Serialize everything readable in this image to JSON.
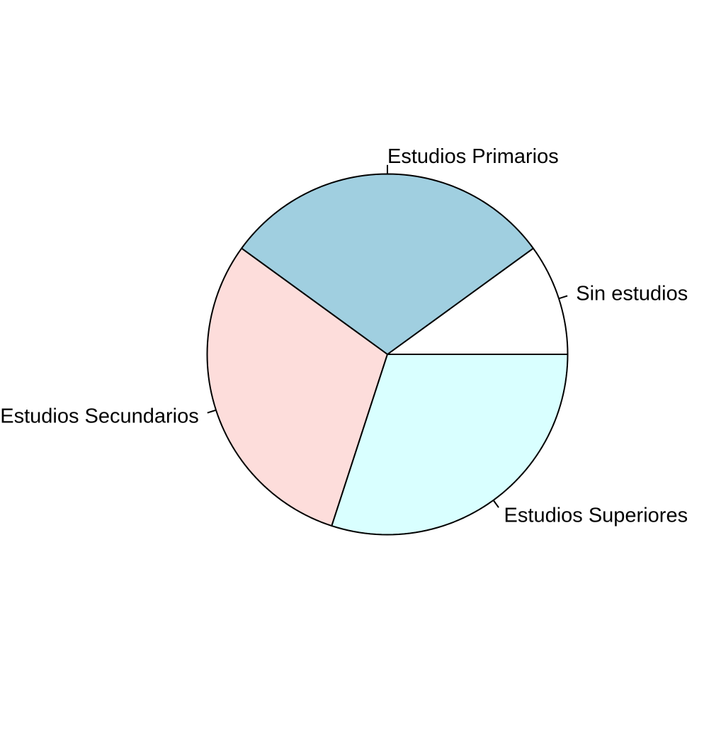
{
  "chart_data": {
    "type": "pie",
    "title": "",
    "direction": "counterclockwise",
    "start_angle_deg": 0,
    "slices": [
      {
        "label": "Sin estudios",
        "value": 10,
        "color": "#FFFFFF"
      },
      {
        "label": "Estudios Primarios",
        "value": 30,
        "color": "#A0CFE0"
      },
      {
        "label": "Estudios Secundarios",
        "value": 30,
        "color": "#FDDDDB"
      },
      {
        "label": "Estudios Superiores",
        "value": 30,
        "color": "#D9FFFF"
      }
    ]
  }
}
